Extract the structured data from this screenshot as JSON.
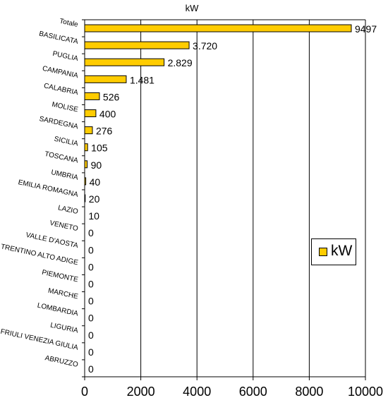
{
  "chart_data": {
    "type": "bar",
    "orientation": "horizontal",
    "title": "kW",
    "categories": [
      "Totale",
      "BASILICATA",
      "PUGLIA",
      "CAMPANIA",
      "CALABRIA",
      "MOLISE",
      "SARDEGNA",
      "SICILIA",
      "TOSCANA",
      "UMBRIA",
      "EMILIA ROMAGNA",
      "LAZIO",
      "VENETO",
      "VALLE D'AOSTA",
      "TRENTINO ALTO ADIGE",
      "PIEMONTE",
      "MARCHE",
      "LOMBARDIA",
      "LIGURIA",
      "FRIULI VENEZIA GIULIA",
      "ABRUZZO"
    ],
    "series": [
      {
        "name": "kW",
        "values": [
          9497,
          3720,
          2829,
          1481,
          526,
          400,
          276,
          105,
          90,
          40,
          20,
          10,
          0,
          0,
          0,
          0,
          0,
          0,
          0,
          0,
          0
        ],
        "labels": [
          "9497",
          "3.720",
          "2.829",
          "1.481",
          "526",
          "400",
          "276",
          "105",
          "90",
          "40",
          "20",
          "10",
          "0",
          "0",
          "0",
          "0",
          "0",
          "0",
          "0",
          "0",
          "0"
        ]
      }
    ],
    "xlim": [
      0,
      10000
    ],
    "xticks": [
      "0",
      "2000",
      "4000",
      "6000",
      "8000",
      "10000"
    ],
    "grid": true,
    "legend": {
      "position": "right",
      "entries": [
        "kW"
      ]
    },
    "colors": {
      "bar": "#FFCC00",
      "bar_edge": "#000000"
    }
  }
}
